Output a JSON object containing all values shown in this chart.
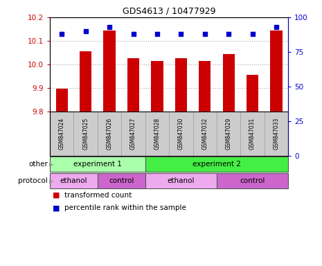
{
  "title": "GDS4613 / 10477929",
  "samples": [
    "GSM847024",
    "GSM847025",
    "GSM847026",
    "GSM847027",
    "GSM847028",
    "GSM847030",
    "GSM847032",
    "GSM847029",
    "GSM847031",
    "GSM847033"
  ],
  "bar_values": [
    9.895,
    10.055,
    10.145,
    10.025,
    10.015,
    10.025,
    10.015,
    10.045,
    9.955,
    10.145
  ],
  "percentile_values": [
    88,
    90,
    93,
    88,
    88,
    88,
    88,
    88,
    88,
    93
  ],
  "ylim_left": [
    9.8,
    10.2
  ],
  "ylim_right": [
    0,
    100
  ],
  "yticks_left": [
    9.8,
    9.9,
    10.0,
    10.1,
    10.2
  ],
  "yticks_right": [
    0,
    25,
    50,
    75,
    100
  ],
  "bar_color": "#cc0000",
  "dot_color": "#0000cc",
  "grid_color": "#aaaaaa",
  "tick_label_bg": "#cccccc",
  "groups": [
    {
      "label": "experiment 1",
      "start": 0,
      "end": 4,
      "color": "#aaffaa"
    },
    {
      "label": "experiment 2",
      "start": 4,
      "end": 10,
      "color": "#44ee44"
    }
  ],
  "protocols": [
    {
      "label": "ethanol",
      "start": 0,
      "end": 2,
      "color": "#eeaaee"
    },
    {
      "label": "control",
      "start": 2,
      "end": 4,
      "color": "#cc66cc"
    },
    {
      "label": "ethanol",
      "start": 4,
      "end": 7,
      "color": "#eeaaee"
    },
    {
      "label": "control",
      "start": 7,
      "end": 10,
      "color": "#cc66cc"
    }
  ],
  "legend_items": [
    {
      "label": "transformed count",
      "color": "#cc0000"
    },
    {
      "label": "percentile rank within the sample",
      "color": "#0000cc"
    }
  ],
  "row_labels": [
    "other",
    "protocol"
  ],
  "arrow_color": "#999999",
  "spine_color": "#000000",
  "separator_color": "#999999"
}
